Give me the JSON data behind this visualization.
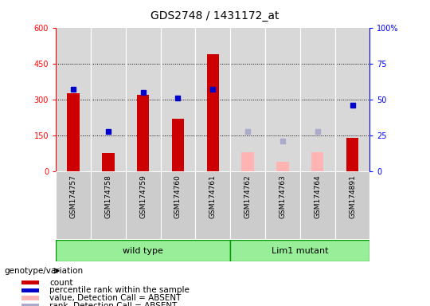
{
  "title": "GDS2748 / 1431172_at",
  "samples": [
    "GSM174757",
    "GSM174758",
    "GSM174759",
    "GSM174760",
    "GSM174761",
    "GSM174762",
    "GSM174763",
    "GSM174764",
    "GSM174891"
  ],
  "count_present": [
    325,
    75,
    320,
    220,
    490,
    null,
    null,
    null,
    140
  ],
  "count_absent": [
    null,
    null,
    null,
    null,
    null,
    80,
    40,
    80,
    null
  ],
  "rank_present_pct": [
    57,
    28,
    55,
    51,
    57,
    null,
    null,
    null,
    46
  ],
  "rank_absent_pct": [
    null,
    null,
    null,
    null,
    null,
    28,
    21,
    28,
    null
  ],
  "ylim_left": [
    0,
    600
  ],
  "ylim_right": [
    0,
    100
  ],
  "yticks_left": [
    0,
    150,
    300,
    450,
    600
  ],
  "yticks_right": [
    0,
    25,
    50,
    75,
    100
  ],
  "groups": [
    {
      "label": "wild type",
      "start": 0,
      "end": 5
    },
    {
      "label": "Lim1 mutant",
      "start": 5,
      "end": 9
    }
  ],
  "bar_color_present": "#cc0000",
  "bar_color_absent": "#ffb3b3",
  "dot_color_present": "#0000cc",
  "dot_color_absent": "#aaaacc",
  "group_bg_color": "#99ee99",
  "group_border_color": "#009900",
  "axis_bg_color": "#d8d8d8",
  "tick_bg_color": "#cccccc",
  "legend_items": [
    {
      "label": "count",
      "color": "#cc0000"
    },
    {
      "label": "percentile rank within the sample",
      "color": "#0000cc"
    },
    {
      "label": "value, Detection Call = ABSENT",
      "color": "#ffb3b3"
    },
    {
      "label": "rank, Detection Call = ABSENT",
      "color": "#aaaacc"
    }
  ],
  "genotype_label": "genotype/variation"
}
